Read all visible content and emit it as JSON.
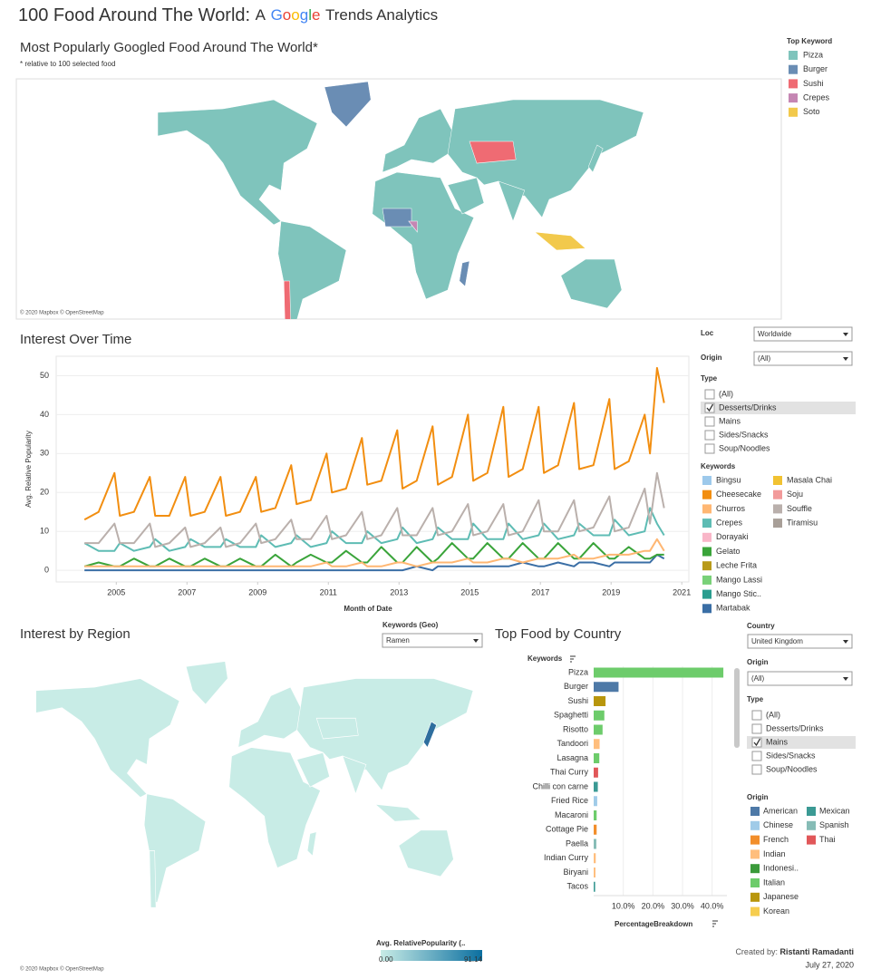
{
  "header": {
    "title": "100 Food Around The World:",
    "subtitle_lead": "A",
    "google_letters": [
      {
        "text": "G",
        "color": "#4285f4"
      },
      {
        "text": "o",
        "color": "#ea4335"
      },
      {
        "text": "o",
        "color": "#fbbc05"
      },
      {
        "text": "g",
        "color": "#4285f4"
      },
      {
        "text": "l",
        "color": "#34a853"
      },
      {
        "text": "e",
        "color": "#ea4335"
      }
    ],
    "subtitle_tail": "Trends Analytics"
  },
  "top_map": {
    "title": "Most Popularly Googled Food Around The World*",
    "note": "* relative to 100 selected food",
    "credit": "© 2020 Mapbox © OpenStreetMap",
    "legend_title": "Top Keyword",
    "legend": [
      {
        "name": "Pizza",
        "color": "#7fc4bc"
      },
      {
        "name": "Burger",
        "color": "#6a8db4"
      },
      {
        "name": "Sushi",
        "color": "#ef6b73"
      },
      {
        "name": "Crepes",
        "color": "#c586b3"
      },
      {
        "name": "Soto",
        "color": "#f2c94c"
      }
    ]
  },
  "filters": {
    "loc": {
      "label": "Loc",
      "value": "Worldwide"
    },
    "origin": {
      "label": "Origin",
      "value": "(All)"
    },
    "type": {
      "label": "Type",
      "options": [
        "(All)",
        "Desserts/Drinks",
        "Mains",
        "Sides/Snacks",
        "Soup/Noodles"
      ],
      "checked": 1
    }
  },
  "region": {
    "title": "Interest by Region",
    "filter_label": "Keywords (Geo)",
    "filter_value": "Ramen",
    "credit": "© 2020 Mapbox © OpenStreetMap",
    "scale_title": "Avg. RelativePopularity (..",
    "scale_min": {
      "value": 0,
      "label": "0.00"
    },
    "scale_max": 91.14,
    "scale_colors": [
      "#c8ece6",
      "#0b6fa0"
    ],
    "highlight_color": "#2e6e9e"
  },
  "country_filters": {
    "country": {
      "label": "Country",
      "value": "United Kingdom"
    },
    "origin": {
      "label": "Origin",
      "value": "(All)"
    },
    "type": {
      "label": "Type",
      "options": [
        "(All)",
        "Desserts/Drinks",
        "Mains",
        "Sides/Snacks",
        "Soup/Noodles"
      ],
      "checked": 2
    }
  },
  "chart_data": [
    {
      "type": "line",
      "title": "Interest Over Time",
      "x_label": "Month of Date",
      "y_label": "Avg. Relative Popularity",
      "x": [
        2004.1,
        2004.5,
        2004.95,
        2005.1,
        2005.5,
        2005.95,
        2006.1,
        2006.5,
        2006.95,
        2007.1,
        2007.5,
        2007.95,
        2008.1,
        2008.5,
        2008.95,
        2009.1,
        2009.5,
        2009.95,
        2010.1,
        2010.5,
        2010.95,
        2011.1,
        2011.5,
        2011.95,
        2012.1,
        2012.5,
        2012.95,
        2013.1,
        2013.5,
        2013.95,
        2014.1,
        2014.5,
        2014.95,
        2015.1,
        2015.5,
        2015.95,
        2016.1,
        2016.5,
        2016.95,
        2017.1,
        2017.5,
        2017.95,
        2018.1,
        2018.5,
        2018.95,
        2019.1,
        2019.5,
        2019.95,
        2020.1,
        2020.3,
        2020.5
      ],
      "xlim": [
        2003.3,
        2021.2
      ],
      "xticks": [
        2005,
        2007,
        2009,
        2011,
        2013,
        2015,
        2017,
        2019,
        2021
      ],
      "ylim": [
        -3,
        55
      ],
      "yticks": [
        0,
        10,
        20,
        30,
        40,
        50
      ],
      "grid": true,
      "legend_title": "Keywords",
      "series": [
        {
          "name": "Bingsu",
          "color": "#9dc9eb"
        },
        {
          "name": "Cheesecake",
          "color": "#f28e10",
          "values": [
            13,
            15,
            25,
            14,
            15,
            24,
            14,
            14,
            24,
            14,
            15,
            24,
            14,
            15,
            24,
            15,
            16,
            27,
            17,
            18,
            30,
            20,
            21,
            34,
            22,
            23,
            36,
            21,
            23,
            37,
            22,
            24,
            40,
            23,
            25,
            42,
            24,
            26,
            42,
            25,
            27,
            43,
            26,
            27,
            44,
            26,
            28,
            40,
            30,
            52,
            43
          ]
        },
        {
          "name": "Churros",
          "color": "#ffb773",
          "values": [
            1,
            1,
            1,
            1,
            1,
            1,
            1,
            1,
            1,
            1,
            1,
            1,
            1,
            1,
            1,
            1,
            1,
            1,
            1,
            1,
            2,
            1,
            1,
            2,
            1,
            1,
            2,
            2,
            1,
            2,
            2,
            2,
            3,
            2,
            2,
            3,
            3,
            2,
            3,
            3,
            3,
            4,
            3,
            3,
            4,
            4,
            4,
            5,
            5,
            8,
            5
          ]
        },
        {
          "name": "Crepes",
          "color": "#5ebcb4",
          "values": [
            7,
            5,
            5,
            7,
            5,
            6,
            8,
            5,
            6,
            8,
            6,
            6,
            8,
            6,
            6,
            9,
            6,
            7,
            9,
            6,
            7,
            10,
            7,
            7,
            10,
            7,
            8,
            11,
            7,
            8,
            11,
            8,
            8,
            12,
            8,
            8,
            12,
            8,
            9,
            12,
            8,
            9,
            12,
            9,
            9,
            13,
            9,
            10,
            16,
            12,
            9
          ]
        },
        {
          "name": "Dorayaki",
          "color": "#f9b6c8"
        },
        {
          "name": "Gelato",
          "color": "#3aa43a",
          "values": [
            1,
            2,
            1,
            1,
            3,
            1,
            1,
            3,
            1,
            1,
            3,
            1,
            1,
            3,
            1,
            1,
            4,
            1,
            2,
            4,
            2,
            2,
            5,
            2,
            2,
            6,
            2,
            2,
            6,
            2,
            3,
            7,
            3,
            3,
            7,
            3,
            3,
            7,
            3,
            3,
            7,
            3,
            3,
            7,
            3,
            3,
            6,
            3,
            3,
            4,
            4
          ]
        },
        {
          "name": "Leche Frita",
          "color": "#b89a1a"
        },
        {
          "name": "Mango Lassi",
          "color": "#79d178"
        },
        {
          "name": "Mango Stic..",
          "color": "#2a9d8f"
        },
        {
          "name": "Martabak",
          "color": "#3a6ea5",
          "values": [
            0,
            0,
            0,
            0,
            0,
            0,
            0,
            0,
            0,
            0,
            0,
            0,
            0,
            0,
            0,
            0,
            0,
            0,
            0,
            0,
            0,
            0,
            0,
            0,
            0,
            0,
            0,
            0,
            1,
            0,
            1,
            1,
            1,
            1,
            1,
            1,
            1,
            2,
            1,
            1,
            2,
            1,
            2,
            2,
            1,
            2,
            2,
            2,
            2,
            4,
            3
          ]
        },
        {
          "name": "Masala Chai",
          "color": "#f1c232"
        },
        {
          "name": "Soju",
          "color": "#f29a9a"
        },
        {
          "name": "Souffle",
          "color": "#bab0ac",
          "values": [
            7,
            7,
            12,
            7,
            7,
            12,
            6,
            7,
            11,
            6,
            7,
            11,
            6,
            7,
            12,
            7,
            8,
            13,
            8,
            8,
            14,
            8,
            9,
            15,
            8,
            9,
            16,
            9,
            9,
            16,
            9,
            10,
            17,
            9,
            10,
            17,
            9,
            10,
            18,
            10,
            10,
            18,
            10,
            11,
            19,
            10,
            11,
            21,
            12,
            25,
            16
          ]
        },
        {
          "name": "Tiramisu",
          "color": "#a89f98"
        }
      ]
    },
    {
      "type": "bar",
      "orientation": "horizontal",
      "title": "Top Food by Country",
      "y_label": "Keywords",
      "x_label": "PercentageBreakdown",
      "categories": [
        "Pizza",
        "Burger",
        "Sushi",
        "Spaghetti",
        "Risotto",
        "Tandoori",
        "Lasagna",
        "Thai Curry",
        "Chilli con carne",
        "Fried Rice",
        "Macaroni",
        "Cottage Pie",
        "Paella",
        "Indian Curry",
        "Biryani",
        "Tacos"
      ],
      "values": [
        43.8,
        8.4,
        4.0,
        3.6,
        3.0,
        2.0,
        1.9,
        1.5,
        1.4,
        1.2,
        1.0,
        1.0,
        0.9,
        0.7,
        0.6,
        0.5
      ],
      "colors": [
        "#6dcc6b",
        "#4e79a7",
        "#b8960c",
        "#6dcc6b",
        "#6dcc6b",
        "#ffbe7d",
        "#6dcc6b",
        "#e15759",
        "#3b9a94",
        "#a0cbe8",
        "#6dcc6b",
        "#f28e2b",
        "#86bcb6",
        "#ffbe7d",
        "#ffbe7d",
        "#3b9a94"
      ],
      "xlim": [
        0,
        45
      ],
      "xticks": [
        {
          "value": 10,
          "label": "10.0%"
        },
        {
          "value": 20,
          "label": "20.0%"
        },
        {
          "value": 30,
          "label": "30.0%"
        },
        {
          "value": 40,
          "label": "40.0%"
        }
      ],
      "legend_title": "Origin",
      "legend": [
        {
          "name": "American",
          "color": "#4e79a7"
        },
        {
          "name": "Mexican",
          "color": "#3b9a94"
        },
        {
          "name": "Chinese",
          "color": "#a0cbe8"
        },
        {
          "name": "Spanish",
          "color": "#86bcb6"
        },
        {
          "name": "French",
          "color": "#f28e2b"
        },
        {
          "name": "Thai",
          "color": "#e15759"
        },
        {
          "name": "Indian",
          "color": "#ffbe7d"
        },
        {
          "name": "Indonesi..",
          "color": "#3a9a3a"
        },
        {
          "name": "Italian",
          "color": "#6dcc6b"
        },
        {
          "name": "Japanese",
          "color": "#b8960c"
        },
        {
          "name": "Korean",
          "color": "#f6cd4f"
        }
      ]
    }
  ],
  "footer": {
    "credit_label": "Created by:",
    "author": "Ristanti Ramadanti",
    "date": "July 27, 2020"
  }
}
